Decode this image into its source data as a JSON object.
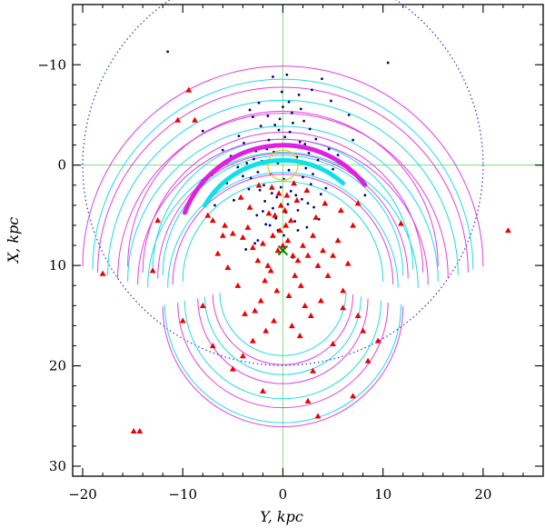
{
  "chart_data": {
    "type": "scatter",
    "xlabel": "Y, kpc",
    "ylabel": "X, kpc",
    "xlim": [
      -21,
      26
    ],
    "ylim": [
      31,
      -16
    ],
    "y_inverted": true,
    "grid": false,
    "legend": "none",
    "x_ticks": [
      -20,
      -10,
      0,
      10,
      20
    ],
    "y_ticks": [
      -10,
      0,
      10,
      20,
      30
    ],
    "x_tick_labels": [
      "−20",
      "−10",
      "0",
      "10",
      "20"
    ],
    "y_tick_labels": [
      "−10",
      "0",
      "10",
      "20",
      "30"
    ],
    "reference_lines": {
      "x": 0,
      "y": 0,
      "color": "#7de07d"
    },
    "outer_circle": {
      "center": [
        0,
        0
      ],
      "radius": 20,
      "style": "dotted",
      "color": "#2233cc"
    },
    "bulge_circle": {
      "center": [
        0,
        0
      ],
      "radius": 1.5,
      "color": "#e0d020"
    },
    "sun": {
      "x": 0,
      "y": 8.5,
      "marker": "x",
      "color": "#008000"
    },
    "spiral_arms_cyan": {
      "color": "#22d8e8",
      "turns": [
        [
          1.0,
          11.5,
          6.3,
          13.5
        ],
        [
          3.0,
          10.0,
          7.8,
          15.5
        ],
        [
          5.0,
          12.0,
          9.8,
          17.5
        ],
        [
          7.0,
          13.0,
          11.8,
          19.0
        ]
      ]
    },
    "spiral_arms_magenta": {
      "color": "#e040e0",
      "turns": [
        [
          2.0,
          11.0,
          7.0,
          14.5
        ],
        [
          4.0,
          12.5,
          8.5,
          16.5
        ],
        [
          6.0,
          14.0,
          10.5,
          18.5
        ],
        [
          8.0,
          15.5,
          12.0,
          20.0
        ]
      ]
    },
    "highlight_arcs": [
      {
        "color": "#e020e0",
        "center": [
          0,
          8.5
        ],
        "radius": 10.5,
        "from_x": -9.8,
        "to_x": 8.2
      },
      {
        "color": "#10e0e8",
        "center": [
          0,
          8.5
        ],
        "radius": 9.0,
        "from_x": -7.8,
        "to_x": 6.0
      }
    ],
    "series": [
      {
        "marker": "dot",
        "color": "#000080",
        "x": [
          -0.5,
          0.6,
          -1.2,
          1.4,
          -2.1,
          2.3,
          0.1,
          -0.9,
          1.1,
          -1.6,
          2.0,
          -2.5,
          0.4,
          -0.2,
          1.7,
          -1.9,
          2.6,
          -2.9,
          0.8,
          -1.1,
          3.0,
          -3.2,
          0.2,
          -0.6,
          1.3,
          -1.4,
          2.2,
          -2.3,
          0.7,
          -0.4,
          3.5,
          -3.6,
          1.9,
          -1.8,
          2.8,
          -2.7,
          0.5,
          -0.8,
          4.1,
          -4.0,
          1.0,
          -1.0,
          3.3,
          -3.4,
          0.3,
          -0.3,
          2.5,
          -2.2,
          4.6,
          -4.5,
          1.5,
          -1.5,
          0.9,
          -0.7,
          3.8,
          -3.9,
          2.1,
          -2.0,
          5.0,
          -5.2,
          0.0,
          1.2,
          -1.3,
          2.7,
          -2.6,
          4.3,
          -4.4,
          0.6,
          -0.5,
          3.1,
          -3.0,
          1.8,
          -1.7,
          5.5,
          -5.6,
          2.4,
          -2.4,
          0.1,
          -0.1,
          6.1,
          -6.0,
          1.6,
          -3.3,
          3.6,
          7.0,
          -7.1,
          4.8,
          -4.9,
          2.9,
          -2.8,
          8.2,
          -8.0,
          0.4,
          1.0,
          -6.8,
          6.6,
          3.9,
          -3.7,
          10.5,
          -11.5,
          -1.0,
          1.5,
          -2.5
        ],
        "y": [
          -0.2,
          0.5,
          0.9,
          -0.8,
          -0.4,
          0.3,
          1.4,
          -1.3,
          1.8,
          -1.6,
          1.2,
          0.7,
          -2.0,
          2.2,
          -2.3,
          2.0,
          -1.2,
          -0.6,
          2.6,
          2.8,
          0.9,
          1.3,
          -2.8,
          3.2,
          3.0,
          -2.5,
          -2.1,
          2.5,
          -3.3,
          -3.5,
          -0.5,
          -0.2,
          3.4,
          3.6,
          1.9,
          -1.4,
          3.9,
          -4.0,
          0.6,
          1.1,
          -4.2,
          4.3,
          -2.6,
          2.4,
          4.7,
          -4.6,
          3.8,
          -3.9,
          -1.6,
          0.2,
          4.5,
          -4.9,
          -5.2,
          5.3,
          2.9,
          -2.2,
          -4.4,
          4.6,
          0.4,
          -0.9,
          -5.8,
          5.6,
          6.0,
          -3.6,
          5.0,
          2.3,
          -2.9,
          -6.3,
          6.5,
          4.2,
          -4.8,
          -5.6,
          5.9,
          -1.0,
          1.8,
          6.2,
          -6.2,
          7.0,
          -7.3,
          0.1,
          -1.5,
          -7.0,
          -5.5,
          5.4,
          -2.5,
          1.0,
          -6.4,
          3.5,
          -7.5,
          7.8,
          3.0,
          -3.4,
          -9.0,
          9.2,
          4.0,
          -5.0,
          -8.6,
          8.4,
          -10.2,
          -11.3,
          -8.8,
          6.5,
          7.5
        ]
      },
      {
        "marker": "triangle",
        "color": "#ee0000",
        "x": [
          0.0,
          0.5,
          -0.5,
          1.0,
          -1.0,
          0.3,
          -0.3,
          1.5,
          -1.5,
          0.8,
          -0.8,
          2.0,
          -2.0,
          1.2,
          -1.2,
          0.2,
          -0.2,
          2.5,
          -2.5,
          1.8,
          -1.8,
          3.0,
          -3.0,
          0.6,
          -0.6,
          3.5,
          -3.5,
          2.2,
          -2.2,
          4.0,
          -4.0,
          1.4,
          -1.4,
          4.5,
          -4.5,
          2.8,
          -2.8,
          5.0,
          -5.0,
          0.9,
          -0.9,
          5.5,
          -5.5,
          3.3,
          -3.3,
          6.0,
          -6.0,
          1.7,
          -1.7,
          6.5,
          -6.5,
          4.2,
          -4.2,
          7.0,
          -7.0,
          2.4,
          -2.4,
          0.4,
          -0.4,
          1.1,
          -1.1,
          3.8,
          -3.8,
          5.8,
          -5.8,
          7.5,
          -7.5,
          8.0,
          -8.0,
          -9.4,
          -8.8,
          -10.5,
          -12.5,
          -13.0,
          -18.0,
          -14.3,
          -14.9,
          -10.0,
          -5.0,
          -2.0,
          3.0,
          2.5,
          3.5,
          7.0,
          8.5,
          9.5,
          11.8,
          22.5,
          7.5,
          5.0,
          -7.0,
          -4.0,
          -3.0,
          6.0
        ],
        "y": [
          8.0,
          7.5,
          8.5,
          9.0,
          7.0,
          6.0,
          6.5,
          9.5,
          10.0,
          5.5,
          5.0,
          8.0,
          7.8,
          11.0,
          10.5,
          4.5,
          4.0,
          9.0,
          9.5,
          12.0,
          11.5,
          7.0,
          8.2,
          13.0,
          12.5,
          10.0,
          6.2,
          14.0,
          13.5,
          8.5,
          7.2,
          3.5,
          4.8,
          11.0,
          12.0,
          15.0,
          14.5,
          9.0,
          6.8,
          16.0,
          15.5,
          7.5,
          10.2,
          5.2,
          4.2,
          12.5,
          7.0,
          17.0,
          16.5,
          9.8,
          8.8,
          3.8,
          3.2,
          6.0,
          5.5,
          2.5,
          2.0,
          3.0,
          2.8,
          1.8,
          2.2,
          13.5,
          14.8,
          4.5,
          6.0,
          3.8,
          5.0,
          16.5,
          14.0,
          -7.5,
          -4.5,
          -4.5,
          5.5,
          10.5,
          10.8,
          26.5,
          26.5,
          15.5,
          20.3,
          22.5,
          20.5,
          23.5,
          25.0,
          23.0,
          19.5,
          17.5,
          5.8,
          6.5,
          15.0,
          17.8,
          18.0,
          19.0,
          17.5,
          14.2
        ]
      }
    ]
  }
}
